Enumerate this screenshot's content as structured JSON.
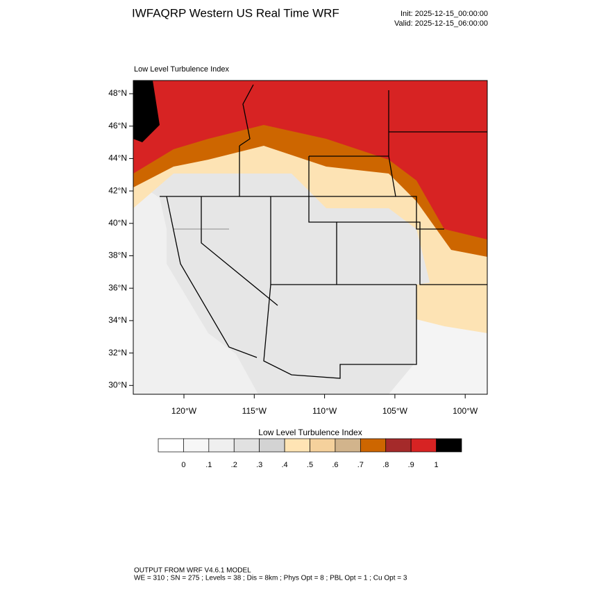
{
  "header": {
    "title": "IWFAQRP Western US Real Time WRF",
    "init": "Init: 2025-12-15_00:00:00",
    "valid": "Valid: 2025-12-15_06:00:00"
  },
  "map": {
    "title": "Low Level Turbulence Index",
    "lat_labels": [
      "48°N",
      "46°N",
      "44°N",
      "42°N",
      "40°N",
      "38°N",
      "36°N",
      "34°N",
      "32°N",
      "30°N"
    ],
    "lon_labels": [
      "120°W",
      "115°W",
      "110°W",
      "105°W",
      "100°W"
    ]
  },
  "colorbar": {
    "title": "Low Level Turbulence Index",
    "colors": [
      "#ffffff",
      "#f7f7f7",
      "#efefef",
      "#e1e1e1",
      "#d3d3d3",
      "#ffe4b4",
      "#f5d19c",
      "#d2b48c",
      "#cd6600",
      "#a52a2a",
      "#d72323",
      "#000000"
    ],
    "labels": [
      "0",
      ".1",
      ".2",
      ".3",
      ".4",
      ".5",
      ".6",
      ".7",
      ".8",
      ".9",
      "1"
    ]
  },
  "footer": {
    "line1": "OUTPUT FROM WRF V4.6.1 MODEL",
    "line2": "WE = 310 ; SN = 275 ; Levels = 38 ; Dis = 8km ; Phys Opt = 8 ; PBL Opt = 1 ; Cu Opt = 3"
  }
}
